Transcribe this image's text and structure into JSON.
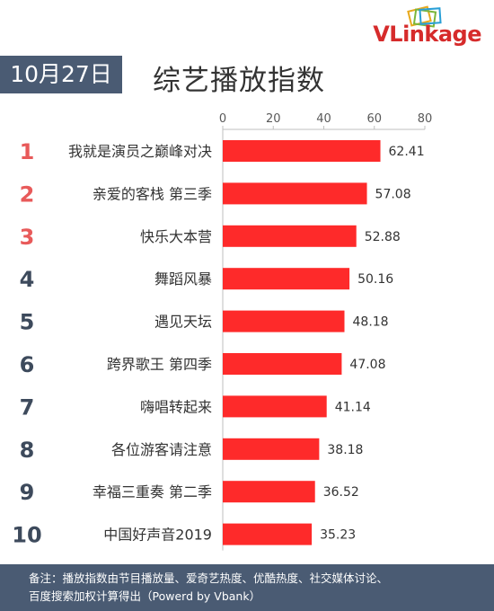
{
  "header": {
    "date": "10月27日",
    "title": "综艺播放指数",
    "logo_v": "V",
    "logo_rest": "Linkage"
  },
  "footer": {
    "line1": "备注：播放指数由节目播放量、爱奇艺热度、优酷热度、社交媒体讨论、",
    "line2": "百度搜索加权计算得出（Powerd by Vbank）"
  },
  "colors": {
    "bar": "#fe2a2a",
    "rank_top": "#e85a5a",
    "rank_other": "#3d4a5c",
    "header_bg": "#4a5b73"
  },
  "chart_data": {
    "type": "bar",
    "orientation": "horizontal",
    "ranks": [
      "1",
      "2",
      "3",
      "4",
      "5",
      "6",
      "7",
      "8",
      "9",
      "10"
    ],
    "categories": [
      "我就是演员之巅峰对决",
      "亲爱的客栈 第三季",
      "快乐大本营",
      "舞蹈风暴",
      "遇见天坛",
      "跨界歌王 第四季",
      "嗨唱转起来",
      "各位游客请注意",
      "幸福三重奏 第二季",
      "中国好声音2019"
    ],
    "values": [
      62.41,
      57.08,
      52.88,
      50.16,
      48.18,
      47.08,
      41.14,
      38.18,
      36.52,
      35.23
    ],
    "value_labels": [
      "62.41",
      "57.08",
      "52.88",
      "50.16",
      "48.18",
      "47.08",
      "41.14",
      "38.18",
      "36.52",
      "35.23"
    ],
    "xticks": [
      0,
      20,
      40,
      60,
      80
    ],
    "xtick_labels": [
      "0",
      "20",
      "40",
      "60",
      "80"
    ],
    "xlim": [
      0,
      80
    ],
    "axis_position": "top",
    "grid": false
  }
}
